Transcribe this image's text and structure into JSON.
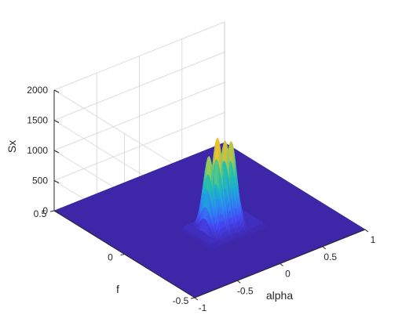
{
  "chart_data": {
    "type": "surface",
    "title": "",
    "xlabel": "alpha",
    "ylabel": "f",
    "zlabel": "Sx",
    "xlim": [
      -1,
      1
    ],
    "ylim": [
      -0.5,
      0.5
    ],
    "zlim": [
      0,
      2000
    ],
    "x_ticks": [
      -1,
      -0.5,
      0,
      0.5,
      1
    ],
    "x_tick_labels": [
      "-1",
      "-0.5",
      "0",
      "0.5",
      "1"
    ],
    "y_ticks": [
      -0.5,
      0,
      0.5
    ],
    "y_tick_labels": [
      "-0.5",
      "0",
      "0.5"
    ],
    "z_ticks": [
      0,
      500,
      1000,
      1500,
      2000
    ],
    "z_tick_labels": [
      "0",
      "500",
      "1000",
      "1500",
      "2000"
    ],
    "grid": true,
    "colormap": [
      "#3e26a8",
      "#4743f0",
      "#2f80f5",
      "#1fa8d8",
      "#26c2a3",
      "#8dcb5f",
      "#eaba30",
      "#f9fb15"
    ],
    "surface_floor_color": "#3e26a8",
    "peaks": [
      {
        "alpha": -0.17,
        "f": -0.1,
        "Sx": 1300,
        "width_alpha": 0.02,
        "width_f": 0.06
      },
      {
        "alpha": -0.07,
        "f": -0.1,
        "Sx": 1550,
        "width_alpha": 0.02,
        "width_f": 0.06
      },
      {
        "alpha": 0.02,
        "f": -0.1,
        "Sx": 1450,
        "width_alpha": 0.02,
        "width_f": 0.06
      },
      {
        "alpha": 0.09,
        "f": -0.1,
        "Sx": 1400,
        "width_alpha": 0.02,
        "width_f": 0.06
      }
    ],
    "ridge": {
      "alpha_range": [
        -0.2,
        0.12
      ],
      "f_center": -0.1,
      "Sx": 800
    },
    "spread_band": {
      "alpha_range": [
        -0.35,
        0.35
      ],
      "f_range": [
        -0.2,
        0.0
      ],
      "Sx": 80
    }
  }
}
